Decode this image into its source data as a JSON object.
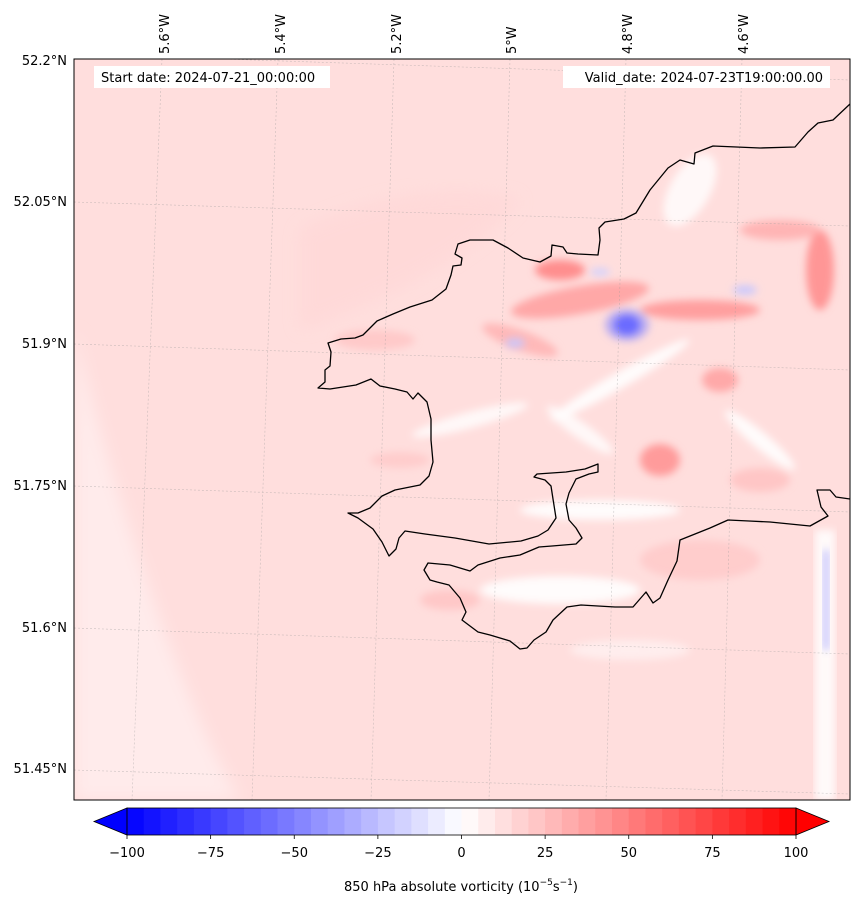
{
  "map": {
    "start_date_text": "Start date: 2024-07-21_00:00:00",
    "valid_date_text": "Valid_date: 2024-07-23T19:00:00.00",
    "lon_labels": [
      "5.6°W",
      "5.4°W",
      "5.2°W",
      "5°W",
      "4.8°W",
      "4.6°W"
    ],
    "lat_labels": [
      "52.2°N",
      "52.05°N",
      "51.9°N",
      "51.75°N",
      "51.6°N",
      "51.45°N"
    ],
    "field": "850 hPa absolute vorticity",
    "background_color": "#ffdedd",
    "coast_color": "#000000"
  },
  "colorbar": {
    "label_main": "850 hPa absolute vorticity (10",
    "label_exp1": "−5",
    "label_mid": "s",
    "label_exp2": "−1",
    "label_end": ")",
    "tick_labels": [
      "−100",
      "−75",
      "−50",
      "−25",
      "0",
      "25",
      "50",
      "75",
      "100"
    ],
    "vmin": -100,
    "vmax": 100,
    "levels": 40,
    "low_color": "#0000ff",
    "mid_color": "#ffffff",
    "high_color": "#ff0000",
    "extend": "both"
  }
}
